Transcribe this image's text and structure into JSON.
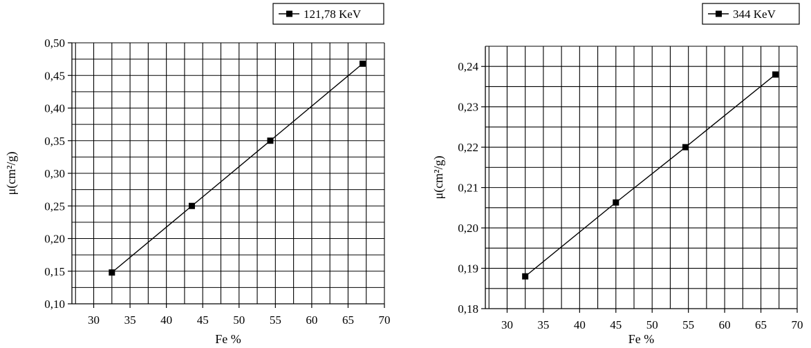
{
  "chart_data": [
    {
      "type": "line",
      "xlabel": "Fe %",
      "ylabel": "μ(cm²/g)",
      "xlim": [
        27,
        70
      ],
      "ylim": [
        0.1,
        0.5
      ],
      "xticks": [
        "30",
        "35",
        "40",
        "45",
        "50",
        "55",
        "60",
        "65",
        "70"
      ],
      "xtick_values": [
        30,
        35,
        40,
        45,
        50,
        55,
        60,
        65,
        70
      ],
      "yticks": [
        "0,10",
        "0,15",
        "0,20",
        "0,25",
        "0,30",
        "0,35",
        "0,40",
        "0,45",
        "0,50"
      ],
      "ytick_values": [
        0.1,
        0.15,
        0.2,
        0.25,
        0.3,
        0.35,
        0.4,
        0.45,
        0.5
      ],
      "grid": true,
      "legend_position": "top-right",
      "marker_color": "#000000",
      "series": [
        {
          "name": "121,78 KeV",
          "x": [
            32.5,
            43.5,
            54.3,
            67.0
          ],
          "y": [
            0.148,
            0.25,
            0.35,
            0.468
          ]
        }
      ]
    },
    {
      "type": "line",
      "xlabel": "Fe %",
      "ylabel": "μ(cm²/g)",
      "xlim": [
        27,
        70
      ],
      "ylim": [
        0.18,
        0.245
      ],
      "xticks": [
        "30",
        "35",
        "40",
        "45",
        "50",
        "55",
        "60",
        "65",
        "70"
      ],
      "xtick_values": [
        30,
        35,
        40,
        45,
        50,
        55,
        60,
        65,
        70
      ],
      "yticks": [
        "0,18",
        "0,19",
        "0,20",
        "0,21",
        "0,22",
        "0,23",
        "0,24"
      ],
      "ytick_values": [
        0.18,
        0.19,
        0.2,
        0.21,
        0.22,
        0.23,
        0.24
      ],
      "grid": true,
      "legend_position": "top-right",
      "marker_color": "#000000",
      "series": [
        {
          "name": "344 KeV",
          "x": [
            32.5,
            45.0,
            54.6,
            67.0
          ],
          "y": [
            0.188,
            0.2063,
            0.22,
            0.238
          ]
        }
      ]
    }
  ]
}
